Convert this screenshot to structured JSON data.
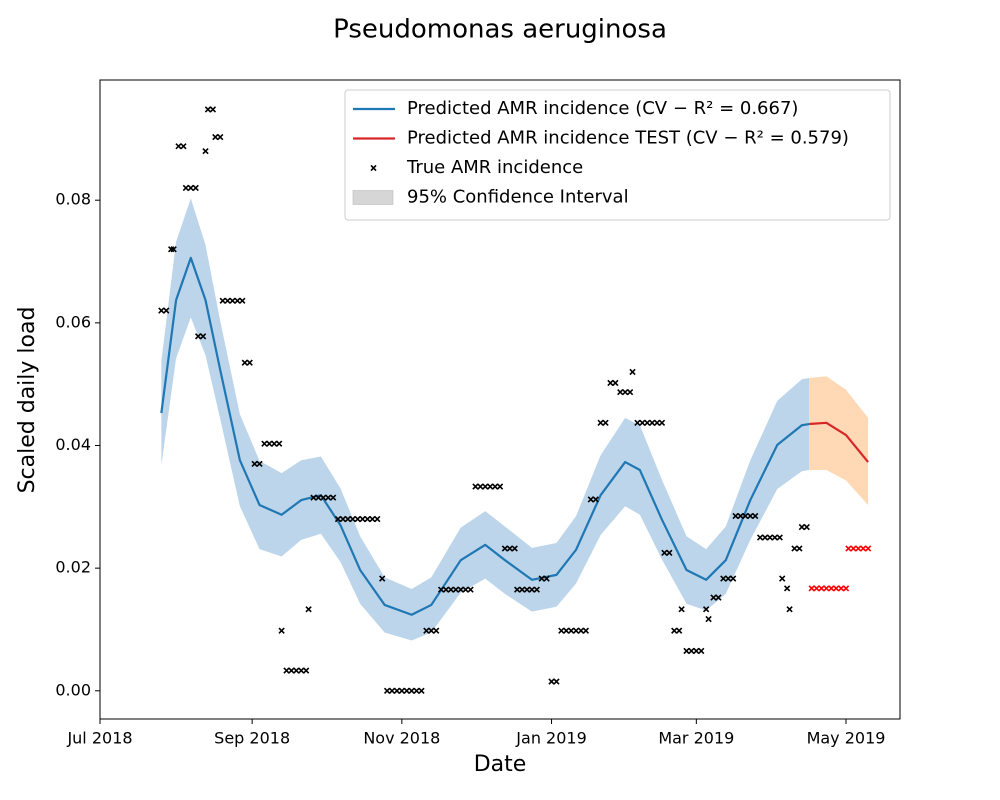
{
  "chart_data": {
    "type": "line",
    "title": "Pseudomonas aeruginosa",
    "x_label": "Date",
    "y_label": "Scaled daily load",
    "xlim": [
      0,
      326
    ],
    "ylim": [
      -0.0046,
      0.0996
    ],
    "xticks": [
      {
        "value": 0,
        "label": "Jul 2018"
      },
      {
        "value": 62,
        "label": "Sep 2018"
      },
      {
        "value": 123,
        "label": "Nov 2018"
      },
      {
        "value": 184,
        "label": "Jan 2019"
      },
      {
        "value": 243,
        "label": "Mar 2019"
      },
      {
        "value": 304,
        "label": "May 2019"
      }
    ],
    "yticks": [
      {
        "value": 0,
        "label": "0.00"
      },
      {
        "value": 0.02,
        "label": "0.02"
      },
      {
        "value": 0.04,
        "label": "0.04"
      },
      {
        "value": 0.06,
        "label": "0.06"
      },
      {
        "value": 0.08,
        "label": "0.08"
      }
    ],
    "grid": false,
    "legend": "upper right",
    "series": [
      {
        "name": "Predicted AMR incidence (CV − R² = 0.667)",
        "type": "line",
        "color": "#1f77b4",
        "x": [
          25,
          31,
          37,
          43,
          49,
          57,
          65,
          74,
          82,
          90,
          98,
          106,
          116,
          127,
          135,
          147,
          157,
          165,
          176,
          186,
          194,
          204,
          214,
          220,
          229,
          239,
          247,
          255,
          265,
          276,
          286,
          289
        ],
        "values": [
          0.0453,
          0.0637,
          0.0706,
          0.0637,
          0.0523,
          0.0376,
          0.0303,
          0.0287,
          0.0311,
          0.0319,
          0.027,
          0.0197,
          0.014,
          0.0124,
          0.014,
          0.0213,
          0.0238,
          0.0213,
          0.0181,
          0.0189,
          0.023,
          0.0319,
          0.0373,
          0.036,
          0.0279,
          0.0197,
          0.0181,
          0.0213,
          0.0311,
          0.0401,
          0.0433,
          0.0435
        ]
      },
      {
        "name": "Predicted AMR incidence TEST (CV − R² = 0.579)",
        "type": "line",
        "color": "#d62728",
        "x": [
          289,
          296,
          304,
          313
        ],
        "values": [
          0.0435,
          0.0437,
          0.0417,
          0.0373
        ]
      },
      {
        "name": "True AMR incidence",
        "type": "scatter",
        "color": "#000000",
        "x": [
          25,
          27,
          29,
          30,
          32,
          34,
          35,
          37,
          39,
          40,
          42,
          43,
          44,
          46,
          47,
          49,
          50,
          52,
          54,
          56,
          58,
          59,
          61,
          63,
          65,
          67,
          69,
          71,
          73,
          74,
          76,
          78,
          80,
          82,
          84,
          85,
          87,
          89,
          91,
          93,
          95,
          97,
          99,
          101,
          103,
          105,
          107,
          109,
          111,
          113,
          115,
          117,
          119,
          121,
          123,
          125,
          127,
          129,
          131,
          133,
          135,
          137,
          139,
          141,
          143,
          145,
          147,
          149,
          151,
          153,
          155,
          157,
          159,
          161,
          163,
          165,
          167,
          169,
          170,
          172,
          174,
          176,
          178,
          180,
          182,
          184,
          186,
          188,
          190,
          192,
          194,
          196,
          198,
          200,
          202,
          204,
          206,
          208,
          210,
          212,
          214,
          216,
          217,
          219,
          221,
          223,
          225,
          227,
          229,
          230,
          232,
          234,
          236,
          237,
          239,
          241,
          243,
          245,
          247,
          248,
          250,
          252,
          254,
          256,
          258,
          259,
          261,
          263,
          265,
          267,
          269,
          271,
          273,
          275,
          277,
          278,
          280,
          281,
          283,
          285,
          286,
          288
        ],
        "values": [
          0.062,
          0.062,
          0.072,
          0.072,
          0.0888,
          0.0888,
          0.082,
          0.082,
          0.082,
          0.0578,
          0.0578,
          0.088,
          0.0948,
          0.0948,
          0.0903,
          0.0903,
          0.0636,
          0.0636,
          0.0636,
          0.0636,
          0.0636,
          0.0535,
          0.0535,
          0.037,
          0.037,
          0.0403,
          0.0403,
          0.0403,
          0.0403,
          0.0098,
          0.0033,
          0.0033,
          0.0033,
          0.0033,
          0.0033,
          0.0133,
          0.0315,
          0.0315,
          0.0315,
          0.0315,
          0.0315,
          0.028,
          0.028,
          0.028,
          0.028,
          0.028,
          0.028,
          0.028,
          0.028,
          0.028,
          0.0183,
          0,
          0,
          0,
          0,
          0,
          0,
          0,
          0,
          0.0098,
          0.0098,
          0.0098,
          0.0165,
          0.0165,
          0.0165,
          0.0165,
          0.0165,
          0.0165,
          0.0165,
          0.0333,
          0.0333,
          0.0333,
          0.0333,
          0.0333,
          0.0333,
          0.0232,
          0.0232,
          0.0232,
          0.0165,
          0.0165,
          0.0165,
          0.0165,
          0.0165,
          0.0183,
          0.0183,
          0.0015,
          0.0015,
          0.0098,
          0.0098,
          0.0098,
          0.0098,
          0.0098,
          0.0098,
          0.0312,
          0.0312,
          0.0437,
          0.0437,
          0.0502,
          0.0502,
          0.0487,
          0.0487,
          0.0487,
          0.052,
          0.0437,
          0.0437,
          0.0437,
          0.0437,
          0.0437,
          0.0437,
          0.0225,
          0.0225,
          0.0098,
          0.0098,
          0.0133,
          0.0065,
          0.0065,
          0.0065,
          0.0065,
          0.0133,
          0.0117,
          0.0152,
          0.0152,
          0.0183,
          0.0183,
          0.0183,
          0.0285,
          0.0285,
          0.0285,
          0.0285,
          0.0285,
          0.025,
          0.025,
          0.025,
          0.025,
          0.025,
          0.0183,
          0.0167,
          0.0133,
          0.0232,
          0.0232,
          0.0267,
          0.0267
        ]
      },
      {
        "name": "95% Confidence Interval",
        "type": "band",
        "color": "#d6d6d6",
        "bands": [
          {
            "color": "#bcd5ea",
            "x": [
              25,
              31,
              37,
              43,
              49,
              57,
              65,
              74,
              82,
              90,
              98,
              106,
              116,
              127,
              135,
              147,
              157,
              165,
              176,
              186,
              194,
              204,
              214,
              220,
              229,
              239,
              247,
              255,
              265,
              276,
              286,
              289
            ],
            "lower": [
              0.0368,
              0.0542,
              0.0609,
              0.0547,
              0.0443,
              0.0301,
              0.0231,
              0.0219,
              0.0246,
              0.0256,
              0.021,
              0.0142,
              0.0095,
              0.0082,
              0.0095,
              0.016,
              0.0183,
              0.0158,
              0.0129,
              0.0137,
              0.0175,
              0.0254,
              0.0301,
              0.0287,
              0.0214,
              0.0142,
              0.0131,
              0.0158,
              0.0246,
              0.0329,
              0.0358,
              0.036
            ],
            "upper": [
              0.0538,
              0.0732,
              0.0803,
              0.0727,
              0.0603,
              0.0451,
              0.0375,
              0.0355,
              0.0376,
              0.0382,
              0.033,
              0.0252,
              0.0185,
              0.0166,
              0.0185,
              0.0266,
              0.0293,
              0.0268,
              0.0233,
              0.0241,
              0.0285,
              0.0384,
              0.0445,
              0.0433,
              0.0344,
              0.0252,
              0.0231,
              0.0268,
              0.0376,
              0.0473,
              0.0508,
              0.051
            ]
          },
          {
            "color": "#ffd9b5",
            "x": [
              289,
              296,
              304,
              313
            ],
            "lower": [
              0.036,
              0.036,
              0.0343,
              0.0303
            ],
            "upper": [
              0.051,
              0.0513,
              0.0491,
              0.0445
            ]
          }
        ]
      },
      {
        "type": "scatter",
        "color": "#ff0000",
        "x": [
          290,
          292,
          294,
          296,
          298,
          300,
          302,
          304,
          305,
          307,
          309,
          311,
          313
        ],
        "values": [
          0.0167,
          0.0167,
          0.0167,
          0.0167,
          0.0167,
          0.0167,
          0.0167,
          0.0167,
          0.0232,
          0.0232,
          0.0232,
          0.0232,
          0.0232
        ]
      }
    ]
  }
}
